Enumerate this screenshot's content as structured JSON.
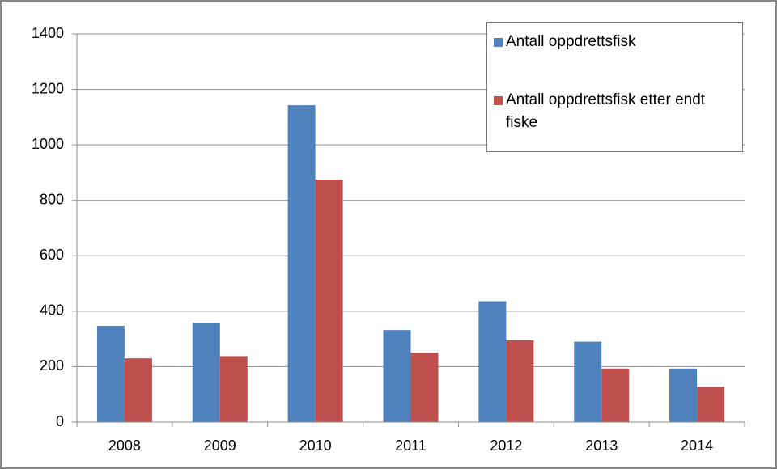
{
  "chart_data": {
    "type": "bar",
    "categories": [
      "2008",
      "2009",
      "2010",
      "2011",
      "2012",
      "2013",
      "2014"
    ],
    "series": [
      {
        "name": "Antall oppdrettsfisk",
        "color": "#4f81bd",
        "values": [
          347,
          358,
          1143,
          332,
          436,
          290,
          193
        ]
      },
      {
        "name": "Antall oppdrettsfisk etter endt fiske",
        "color": "#c0504d",
        "values": [
          230,
          238,
          875,
          250,
          295,
          193,
          127
        ]
      }
    ],
    "ylim": [
      0,
      1400
    ],
    "yticks": [
      0,
      200,
      400,
      600,
      800,
      1000,
      1200,
      1400
    ],
    "grid": true,
    "legend": "top-right"
  }
}
